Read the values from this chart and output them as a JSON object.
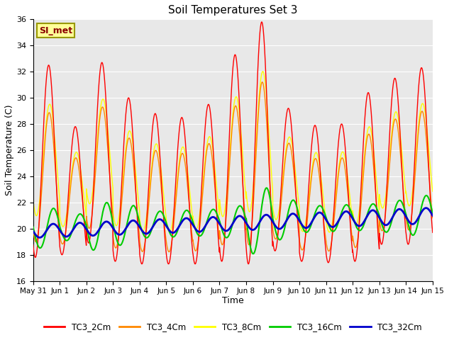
{
  "title": "Soil Temperatures Set 3",
  "xlabel": "Time",
  "ylabel": "Soil Temperature (C)",
  "ylim": [
    16,
    36
  ],
  "yticks": [
    16,
    18,
    20,
    22,
    24,
    26,
    28,
    30,
    32,
    34,
    36
  ],
  "annotation_text": "SI_met",
  "annotation_color": "#8B0000",
  "annotation_bg": "#FFFF99",
  "annotation_border": "#999900",
  "plot_bg": "#E8E8E8",
  "fig_bg": "#FFFFFF",
  "grid_color": "white",
  "series": {
    "TC3_2Cm": {
      "color": "#FF0000",
      "lw": 1.0
    },
    "TC3_4Cm": {
      "color": "#FF8800",
      "lw": 1.0
    },
    "TC3_8Cm": {
      "color": "#FFFF00",
      "lw": 1.0
    },
    "TC3_16Cm": {
      "color": "#00CC00",
      "lw": 1.5
    },
    "TC3_32Cm": {
      "color": "#0000CC",
      "lw": 2.0
    }
  },
  "xtick_labels": [
    "May 31",
    "Jun 1",
    "Jun 2",
    "Jun 3",
    "Jun 4",
    "Jun 5",
    "Jun 6",
    "Jun 7",
    "Jun 8",
    "Jun 9",
    "Jun 10",
    "Jun 11",
    "Jun 12",
    "Jun 13",
    "Jun 14",
    "Jun 15"
  ],
  "legend_entries": [
    "TC3_2Cm",
    "TC3_4Cm",
    "TC3_8Cm",
    "TC3_16Cm",
    "TC3_32Cm"
  ],
  "legend_colors": [
    "#FF0000",
    "#FF8800",
    "#FFFF00",
    "#00CC00",
    "#0000CC"
  ],
  "day_peaks_2cm": [
    32.5,
    27.8,
    32.7,
    30.0,
    28.8,
    28.5,
    29.5,
    33.3,
    35.8,
    29.2,
    27.9,
    28.0,
    30.4,
    31.5,
    32.3
  ],
  "day_troughs_2cm": [
    17.8,
    18.0,
    18.9,
    17.5,
    17.3,
    17.3,
    17.3,
    17.5,
    17.3,
    18.3,
    17.5,
    17.4,
    17.5,
    18.8,
    18.8
  ]
}
